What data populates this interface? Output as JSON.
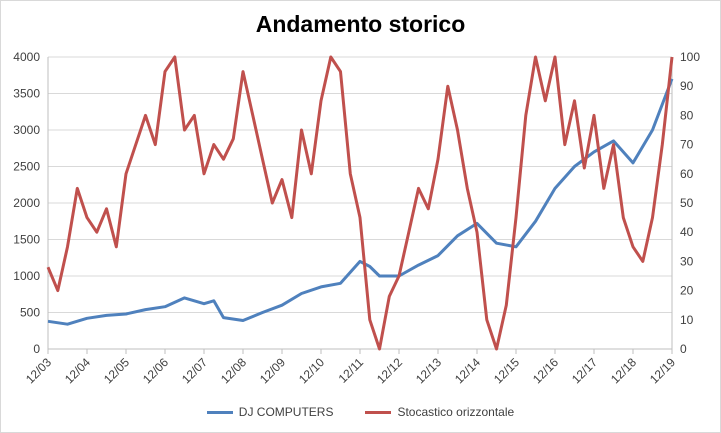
{
  "chart_data": {
    "type": "line",
    "title": "Andamento storico",
    "x": [
      "12/03",
      "12/04",
      "12/05",
      "12/06",
      "12/07",
      "12/08",
      "12/09",
      "12/10",
      "12/11",
      "12/12",
      "12/13",
      "12/14",
      "12/15",
      "12/16",
      "12/17",
      "12/18",
      "12/19"
    ],
    "y_left": {
      "ylim": [
        0,
        4000
      ],
      "ticks": [
        "0",
        "500",
        "1000",
        "1500",
        "2000",
        "2500",
        "3000",
        "3500",
        "4000"
      ]
    },
    "y_right": {
      "ylim": [
        0,
        100
      ],
      "ticks": [
        "0",
        "10",
        "20",
        "30",
        "40",
        "50",
        "60",
        "70",
        "80",
        "90",
        "100"
      ]
    },
    "grid": "horizontal",
    "legend_position": "bottom",
    "series": [
      {
        "name": "DJ COMPUTERS",
        "axis": "left",
        "color": "#4f81bd",
        "points": [
          [
            "12/03",
            380
          ],
          [
            "06/04",
            340
          ],
          [
            "12/04",
            420
          ],
          [
            "06/05",
            460
          ],
          [
            "12/05",
            480
          ],
          [
            "06/06",
            540
          ],
          [
            "12/06",
            580
          ],
          [
            "06/07",
            700
          ],
          [
            "12/07",
            620
          ],
          [
            "03/08",
            660
          ],
          [
            "06/08",
            430
          ],
          [
            "12/08",
            390
          ],
          [
            "06/09",
            500
          ],
          [
            "12/09",
            600
          ],
          [
            "06/10",
            760
          ],
          [
            "12/10",
            850
          ],
          [
            "06/11",
            900
          ],
          [
            "12/11",
            1200
          ],
          [
            "03/12",
            1130
          ],
          [
            "06/12",
            1000
          ],
          [
            "12/12",
            1000
          ],
          [
            "06/13",
            1150
          ],
          [
            "12/13",
            1280
          ],
          [
            "06/14",
            1550
          ],
          [
            "12/14",
            1720
          ],
          [
            "06/15",
            1450
          ],
          [
            "12/15",
            1400
          ],
          [
            "06/16",
            1750
          ],
          [
            "12/16",
            2200
          ],
          [
            "06/17",
            2500
          ],
          [
            "12/17",
            2700
          ],
          [
            "06/18",
            2850
          ],
          [
            "12/18",
            2550
          ],
          [
            "06/19",
            3000
          ],
          [
            "12/19",
            3700
          ]
        ]
      },
      {
        "name": "Stocastico orizzontale",
        "axis": "right",
        "color": "#c0504d",
        "points": [
          [
            "12/03",
            28
          ],
          [
            "03/04",
            20
          ],
          [
            "06/04",
            35
          ],
          [
            "09/04",
            55
          ],
          [
            "12/04",
            45
          ],
          [
            "03/05",
            40
          ],
          [
            "06/05",
            48
          ],
          [
            "09/05",
            35
          ],
          [
            "12/05",
            60
          ],
          [
            "06/06",
            80
          ],
          [
            "09/06",
            70
          ],
          [
            "12/06",
            95
          ],
          [
            "03/07",
            100
          ],
          [
            "06/07",
            75
          ],
          [
            "09/07",
            80
          ],
          [
            "12/07",
            60
          ],
          [
            "03/08",
            70
          ],
          [
            "06/08",
            65
          ],
          [
            "09/08",
            72
          ],
          [
            "12/08",
            95
          ],
          [
            "03/09",
            80
          ],
          [
            "06/09",
            65
          ],
          [
            "09/09",
            50
          ],
          [
            "12/09",
            58
          ],
          [
            "03/10",
            45
          ],
          [
            "06/10",
            75
          ],
          [
            "09/10",
            60
          ],
          [
            "12/10",
            85
          ],
          [
            "03/11",
            100
          ],
          [
            "06/11",
            95
          ],
          [
            "09/11",
            60
          ],
          [
            "12/11",
            45
          ],
          [
            "03/12",
            10
          ],
          [
            "06/12",
            0
          ],
          [
            "09/12",
            18
          ],
          [
            "12/12",
            25
          ],
          [
            "03/13",
            40
          ],
          [
            "06/13",
            55
          ],
          [
            "09/13",
            48
          ],
          [
            "12/13",
            65
          ],
          [
            "03/14",
            90
          ],
          [
            "06/14",
            75
          ],
          [
            "09/14",
            55
          ],
          [
            "12/14",
            40
          ],
          [
            "03/15",
            10
          ],
          [
            "06/15",
            0
          ],
          [
            "09/15",
            15
          ],
          [
            "12/15",
            45
          ],
          [
            "03/16",
            80
          ],
          [
            "06/16",
            100
          ],
          [
            "09/16",
            85
          ],
          [
            "12/16",
            100
          ],
          [
            "03/17",
            70
          ],
          [
            "06/17",
            85
          ],
          [
            "09/17",
            62
          ],
          [
            "12/17",
            80
          ],
          [
            "03/18",
            55
          ],
          [
            "06/18",
            70
          ],
          [
            "09/18",
            45
          ],
          [
            "12/18",
            35
          ],
          [
            "03/19",
            30
          ],
          [
            "06/19",
            45
          ],
          [
            "09/19",
            70
          ],
          [
            "12/19",
            100
          ]
        ]
      }
    ]
  }
}
